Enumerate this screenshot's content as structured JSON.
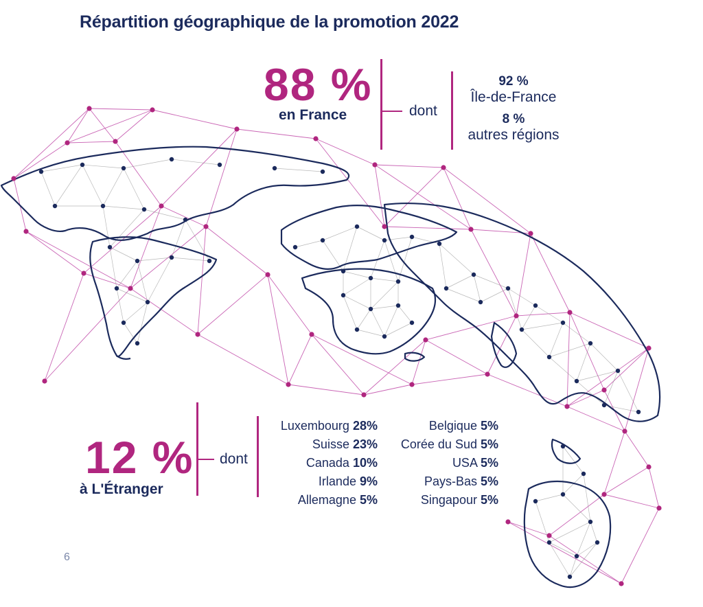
{
  "title": "Répartition géographique de la promotion 2022",
  "france": {
    "pct": "88 %",
    "label": "en France",
    "dont": "dont",
    "breakdown": [
      {
        "pct": "92 %",
        "label": "Île-de-France"
      },
      {
        "pct": "8 %",
        "label": "autres régions"
      }
    ]
  },
  "abroad": {
    "pct": "12 %",
    "label": "à L'Étranger",
    "dont": "dont",
    "countries_left": [
      {
        "name": "Luxembourg",
        "pct": "28%"
      },
      {
        "name": "Suisse",
        "pct": "23%"
      },
      {
        "name": "Canada",
        "pct": "10%"
      },
      {
        "name": "Irlande",
        "pct": "9%"
      },
      {
        "name": "Allemagne",
        "pct": "5%"
      }
    ],
    "countries_right": [
      {
        "name": "Belgique",
        "pct": "5%"
      },
      {
        "name": "Corée du Sud",
        "pct": "5%"
      },
      {
        "name": "USA",
        "pct": "5%"
      },
      {
        "name": "Pays-Bas",
        "pct": "5%"
      },
      {
        "name": "Singapour",
        "pct": "5%"
      }
    ]
  },
  "page_number": "6",
  "colors": {
    "accent": "#b0267f",
    "navy": "#1b2a5c",
    "network": "#c04aa8"
  }
}
